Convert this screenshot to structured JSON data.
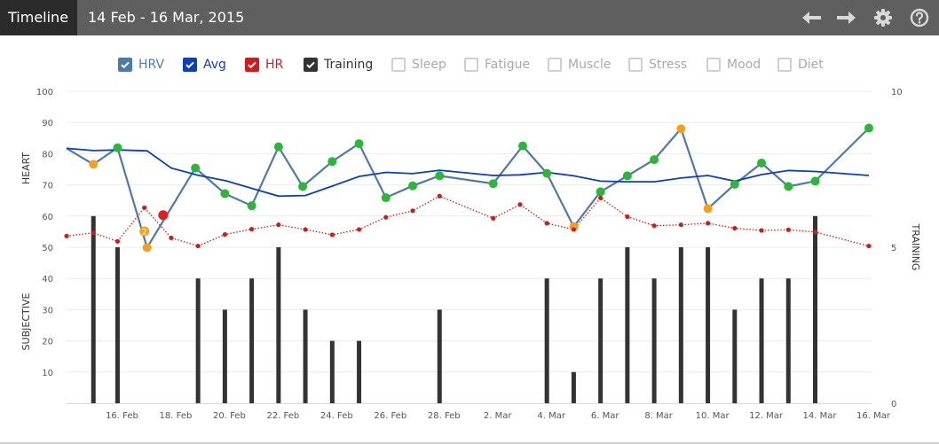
{
  "header": {
    "tab_label": "Timeline",
    "date_range": "14 Feb - 16 Mar, 2015",
    "icons": [
      "arrow-left-icon",
      "arrow-right-icon",
      "gear-icon",
      "help-icon"
    ]
  },
  "legend": [
    {
      "label": "HRV",
      "checked": true,
      "color": "#4f79a8"
    },
    {
      "label": "Avg",
      "checked": true,
      "color": "#0a3fbf"
    },
    {
      "label": "HR",
      "checked": true,
      "color": "#d11a1a"
    },
    {
      "label": "Training",
      "checked": true,
      "color": "#333333"
    },
    {
      "label": "Sleep",
      "checked": false
    },
    {
      "label": "Fatigue",
      "checked": false
    },
    {
      "label": "Muscle",
      "checked": false
    },
    {
      "label": "Stress",
      "checked": false
    },
    {
      "label": "Mood",
      "checked": false
    },
    {
      "label": "Diet",
      "checked": false
    }
  ],
  "chart_data": {
    "type": "line",
    "left_axis_upper_label": "HEART",
    "left_axis_lower_label": "SUBJECTIVE",
    "right_axis_label": "TRAINING",
    "left_ticks": [
      "10",
      "20",
      "30",
      "40",
      "50",
      "60",
      "70",
      "80",
      "90",
      "100"
    ],
    "right_ticks": [
      "0",
      "5",
      "10"
    ],
    "x_tick_labels": [
      "16. Feb",
      "18. Feb",
      "20. Feb",
      "22. Feb",
      "24. Feb",
      "26. Feb",
      "28. Feb",
      "2. Mar",
      "4. Mar",
      "6. Mar",
      "8. Mar",
      "10. Mar",
      "12. Mar",
      "14. Mar",
      "16. Mar"
    ],
    "x_start": "14. Feb",
    "x_end": "16. Mar",
    "ylim_left": [
      0,
      100
    ],
    "ylim_right": [
      0,
      10
    ],
    "grid": true,
    "series": [
      {
        "name": "HRV",
        "color": "#4f79a8",
        "points": [
          {
            "x": 14.0,
            "y": 81.7,
            "dot": ""
          },
          {
            "x": 15.0,
            "y": 76.6,
            "dot": "#f5a11c"
          },
          {
            "x": 15.9,
            "y": 81.9,
            "dot": "#2db53a"
          },
          {
            "x": 17.0,
            "y": 49.9,
            "dot": "#f5a11c"
          },
          {
            "x": 18.8,
            "y": 75.4,
            "dot": "#2db53a"
          },
          {
            "x": 19.9,
            "y": 67.2,
            "dot": "#2db53a"
          },
          {
            "x": 20.9,
            "y": 63.3,
            "dot": "#2db53a"
          },
          {
            "x": 21.9,
            "y": 82.2,
            "dot": "#2db53a"
          },
          {
            "x": 22.8,
            "y": 69.5,
            "dot": "#2db53a"
          },
          {
            "x": 23.9,
            "y": 77.5,
            "dot": "#2db53a"
          },
          {
            "x": 24.9,
            "y": 83.2,
            "dot": "#2db53a"
          },
          {
            "x": 25.9,
            "y": 65.9,
            "dot": "#2db53a"
          },
          {
            "x": 26.9,
            "y": 69.7,
            "dot": "#2db53a"
          },
          {
            "x": 27.9,
            "y": 72.9,
            "dot": "#2db53a"
          },
          {
            "x": 29.9,
            "y": 70.4,
            "dot": "#2db53a"
          },
          {
            "x": 31.0,
            "y": 82.5,
            "dot": "#2db53a"
          },
          {
            "x": 31.9,
            "y": 73.7,
            "dot": "#2db53a"
          },
          {
            "x": 32.9,
            "y": 56.6,
            "dot": "#f5a11c"
          },
          {
            "x": 33.9,
            "y": 67.8,
            "dot": "#2db53a"
          },
          {
            "x": 34.9,
            "y": 72.9,
            "dot": "#2db53a"
          },
          {
            "x": 35.9,
            "y": 78.1,
            "dot": "#2db53a"
          },
          {
            "x": 36.9,
            "y": 88.0,
            "dot": "#f5a11c"
          },
          {
            "x": 37.9,
            "y": 62.4,
            "dot": "#f5a11c"
          },
          {
            "x": 38.9,
            "y": 70.2,
            "dot": "#2db53a"
          },
          {
            "x": 39.9,
            "y": 77.0,
            "dot": "#2db53a"
          },
          {
            "x": 40.9,
            "y": 69.5,
            "dot": "#2db53a"
          },
          {
            "x": 41.9,
            "y": 71.2,
            "dot": "#2db53a"
          },
          {
            "x": 43.9,
            "y": 88.2,
            "dot": "#2db53a"
          }
        ]
      },
      {
        "name": "Avg",
        "color": "#0a3fbf",
        "points": [
          {
            "x": 14.0,
            "y": 81.7
          },
          {
            "x": 15.0,
            "y": 81.0
          },
          {
            "x": 15.9,
            "y": 81.2
          },
          {
            "x": 17.0,
            "y": 80.9
          },
          {
            "x": 17.9,
            "y": 75.4
          },
          {
            "x": 18.9,
            "y": 73.1
          },
          {
            "x": 19.9,
            "y": 71.4
          },
          {
            "x": 20.9,
            "y": 68.9
          },
          {
            "x": 21.9,
            "y": 66.4
          },
          {
            "x": 22.9,
            "y": 66.6
          },
          {
            "x": 23.9,
            "y": 69.6
          },
          {
            "x": 24.9,
            "y": 72.7
          },
          {
            "x": 25.9,
            "y": 74.0
          },
          {
            "x": 26.9,
            "y": 73.6
          },
          {
            "x": 27.9,
            "y": 74.7
          },
          {
            "x": 29.9,
            "y": 73.0
          },
          {
            "x": 30.9,
            "y": 73.2
          },
          {
            "x": 31.9,
            "y": 74.0
          },
          {
            "x": 32.9,
            "y": 72.9
          },
          {
            "x": 33.9,
            "y": 71.2
          },
          {
            "x": 34.9,
            "y": 71.0
          },
          {
            "x": 35.9,
            "y": 71.0
          },
          {
            "x": 36.9,
            "y": 72.2
          },
          {
            "x": 37.9,
            "y": 73.0
          },
          {
            "x": 38.9,
            "y": 71.2
          },
          {
            "x": 39.9,
            "y": 73.3
          },
          {
            "x": 40.9,
            "y": 74.6
          },
          {
            "x": 41.9,
            "y": 74.3
          },
          {
            "x": 43.9,
            "y": 73.0
          }
        ]
      },
      {
        "name": "HR",
        "color": "#d11a1a",
        "points": [
          {
            "x": 14.0,
            "y": 53.6
          },
          {
            "x": 15.0,
            "y": 54.6
          },
          {
            "x": 15.9,
            "y": 51.9
          },
          {
            "x": 16.9,
            "y": 62.7
          },
          {
            "x": 17.9,
            "y": 53.0
          },
          {
            "x": 18.9,
            "y": 50.4
          },
          {
            "x": 19.9,
            "y": 54.1
          },
          {
            "x": 20.9,
            "y": 55.8
          },
          {
            "x": 21.9,
            "y": 57.2
          },
          {
            "x": 22.9,
            "y": 55.7
          },
          {
            "x": 23.9,
            "y": 54.0
          },
          {
            "x": 24.9,
            "y": 55.7
          },
          {
            "x": 25.9,
            "y": 59.6
          },
          {
            "x": 26.9,
            "y": 61.7
          },
          {
            "x": 27.9,
            "y": 66.4
          },
          {
            "x": 29.9,
            "y": 59.3
          },
          {
            "x": 30.9,
            "y": 63.7
          },
          {
            "x": 31.9,
            "y": 57.7
          },
          {
            "x": 32.9,
            "y": 55.7
          },
          {
            "x": 33.9,
            "y": 65.8
          },
          {
            "x": 34.9,
            "y": 59.8
          },
          {
            "x": 35.9,
            "y": 56.9
          },
          {
            "x": 36.9,
            "y": 57.2
          },
          {
            "x": 37.9,
            "y": 57.7
          },
          {
            "x": 38.9,
            "y": 56.1
          },
          {
            "x": 39.9,
            "y": 55.4
          },
          {
            "x": 40.9,
            "y": 55.6
          },
          {
            "x": 41.9,
            "y": 54.9
          },
          {
            "x": 43.9,
            "y": 50.4
          }
        ]
      },
      {
        "name": "Training",
        "color": "#333333",
        "axis": "right",
        "bars": [
          {
            "x": 15.0,
            "y": 6
          },
          {
            "x": 15.9,
            "y": 5
          },
          {
            "x": 18.9,
            "y": 4
          },
          {
            "x": 19.9,
            "y": 3
          },
          {
            "x": 20.9,
            "y": 4
          },
          {
            "x": 21.9,
            "y": 5
          },
          {
            "x": 22.9,
            "y": 3
          },
          {
            "x": 23.9,
            "y": 2
          },
          {
            "x": 24.9,
            "y": 2
          },
          {
            "x": 27.9,
            "y": 3
          },
          {
            "x": 31.9,
            "y": 4
          },
          {
            "x": 32.9,
            "y": 1
          },
          {
            "x": 33.9,
            "y": 4
          },
          {
            "x": 34.9,
            "y": 5
          },
          {
            "x": 35.9,
            "y": 4
          },
          {
            "x": 36.9,
            "y": 5
          },
          {
            "x": 37.9,
            "y": 5
          },
          {
            "x": 38.9,
            "y": 3
          },
          {
            "x": 39.9,
            "y": 4
          },
          {
            "x": 40.9,
            "y": 4
          },
          {
            "x": 41.9,
            "y": 6
          }
        ]
      }
    ],
    "markers": [
      {
        "x": 16.9,
        "y": 55.1,
        "color": "#f5a11c",
        "label": "2"
      },
      {
        "x": 17.6,
        "y": 60.3,
        "color": "#e11f1f",
        "label": ""
      }
    ]
  }
}
